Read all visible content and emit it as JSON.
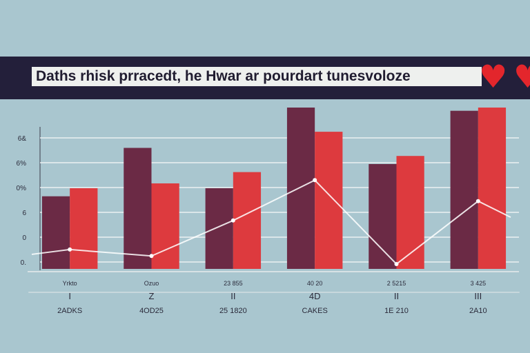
{
  "header": {
    "title": "Daths rhisk prracedt, he Hwar ar pourdart tunesvoloze",
    "icons": [
      "heart-icon",
      "heart-icon"
    ]
  },
  "colors": {
    "background": "#a9c6cf",
    "banner": "#231f3a",
    "bar_dark": "#6b2a45",
    "bar_red": "#dd3a3e",
    "line": "#ffffff",
    "heart": "#e3262c"
  },
  "chart_data": {
    "type": "bar",
    "title": "Daths rhisk prracedt, he Hwar ar pourdart tunesvoloze",
    "ytick_labels": [
      "6&",
      "6%",
      "0%",
      "6",
      "0",
      "0."
    ],
    "categories": [
      "2ADKS",
      "4OD25",
      "25 1820",
      "CAKES",
      "1E 210",
      "2A10"
    ],
    "category_sublabels_1": [
      "Yrkto",
      "Ozuo",
      "23 855",
      "40 20",
      "2 5215",
      "3 425"
    ],
    "category_sublabels_2": [
      "I",
      "Z",
      "II",
      "4D",
      "II",
      "III"
    ],
    "ylim": [
      0,
      100
    ],
    "series": [
      {
        "values": [
          45,
          75,
          50,
          100,
          65,
          98
        ]
      },
      {
        "values": [
          50,
          53,
          60,
          85,
          70,
          100
        ]
      }
    ],
    "line": {
      "values": [
        12,
        8,
        30,
        55,
        3,
        42
      ]
    },
    "grid": true,
    "legend": "none"
  }
}
